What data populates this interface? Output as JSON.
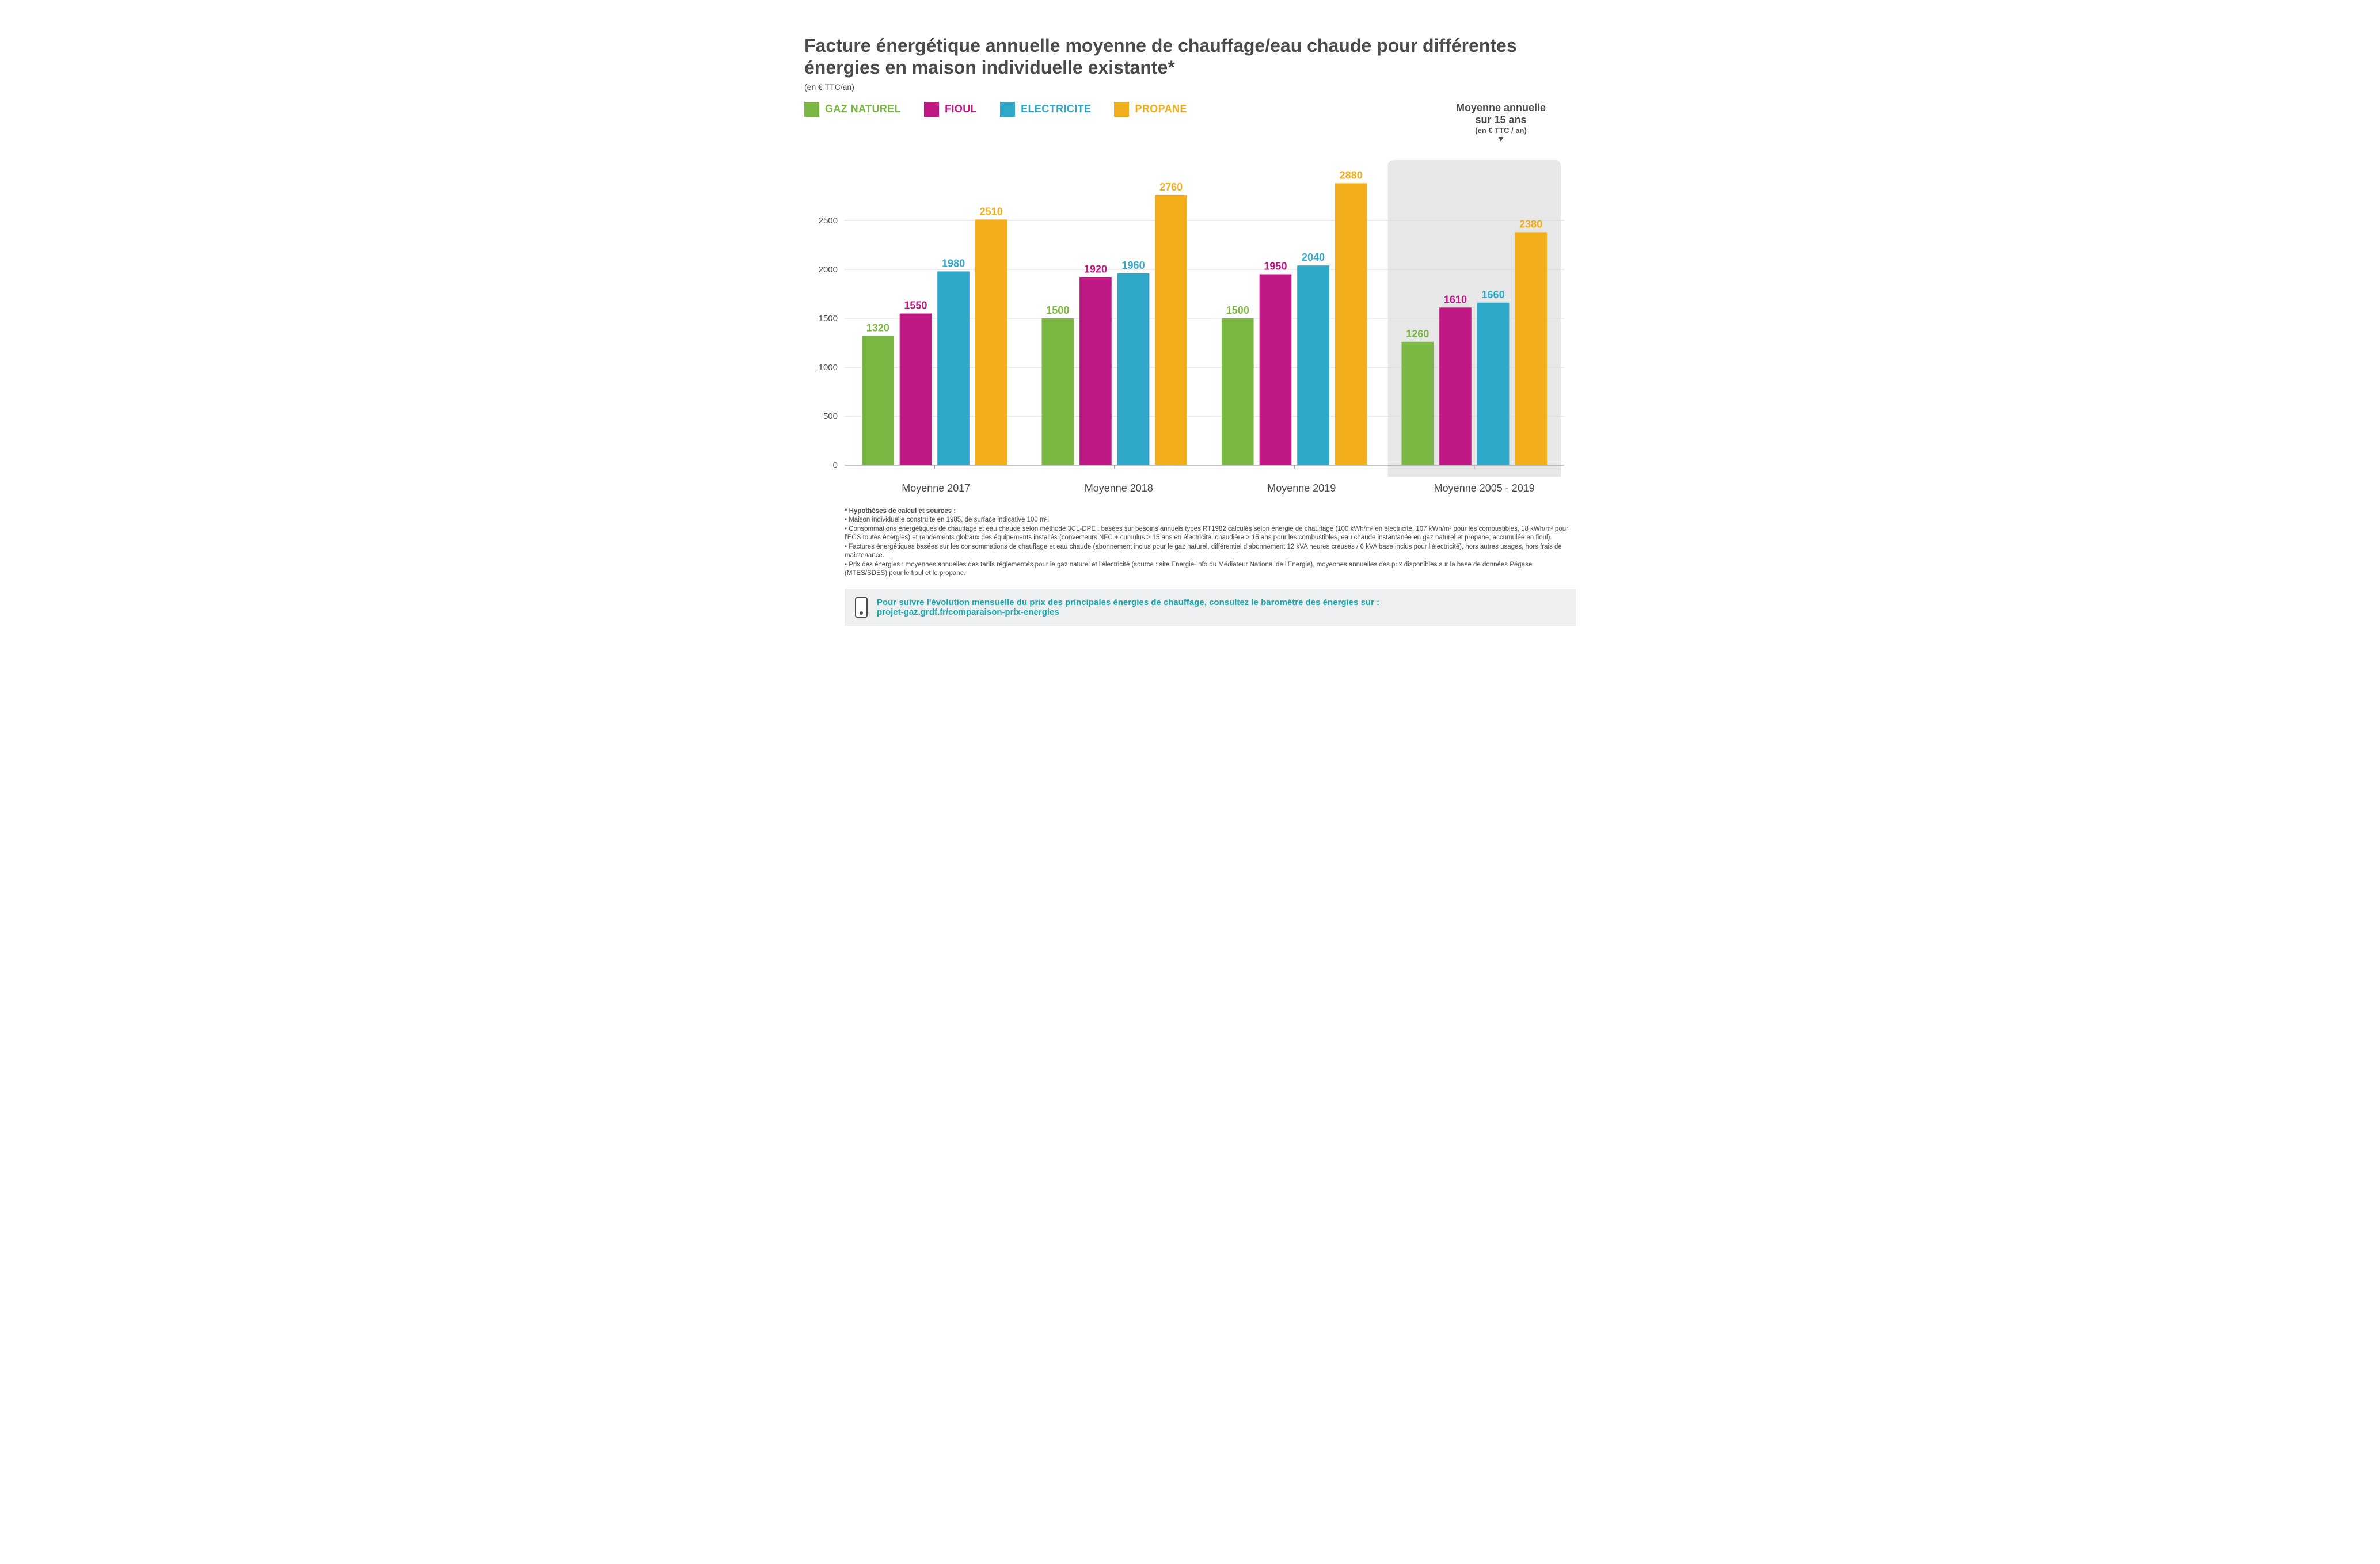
{
  "title": "Facture énergétique annuelle moyenne de chauffage/eau chaude pour différentes énergies en maison individuelle existante*",
  "subtitle": "(en € TTC/an)",
  "colors": {
    "gaz": "#7ab642",
    "fioul": "#c01884",
    "elec": "#2ea7c9",
    "prop": "#f2ad1b",
    "text": "#4a4a4a",
    "grid": "#d9d9d9",
    "axis": "#8a8a8a",
    "avg_bg": "#e7e7e7",
    "callout_bg": "#eeeff0",
    "callout_text": "#18a8ac",
    "background": "#ffffff"
  },
  "legend": [
    {
      "key": "gaz",
      "label": "GAZ NATUREL"
    },
    {
      "key": "fioul",
      "label": "FIOUL"
    },
    {
      "key": "elec",
      "label": "ELECTRICITE"
    },
    {
      "key": "prop",
      "label": "PROPANE"
    }
  ],
  "avg_box": {
    "line1": "Moyenne annuelle",
    "line2": "sur 15 ans",
    "line3": "(en € TTC / an)"
  },
  "chart": {
    "type": "bar",
    "ylim": [
      0,
      3000
    ],
    "ytick_step": 500,
    "yticks": [
      0,
      500,
      1000,
      1500,
      2000,
      2500
    ],
    "bar_width": 0.72,
    "label_fontsize": 18,
    "value_fontsize": 18,
    "axis_fontsize": 15,
    "groups": [
      {
        "label": "Moyenne 2017",
        "highlight": false,
        "values": {
          "gaz": 1320,
          "fioul": 1550,
          "elec": 1980,
          "prop": 2510
        }
      },
      {
        "label": "Moyenne 2018",
        "highlight": false,
        "values": {
          "gaz": 1500,
          "fioul": 1920,
          "elec": 1960,
          "prop": 2760
        }
      },
      {
        "label": "Moyenne 2019",
        "highlight": false,
        "values": {
          "gaz": 1500,
          "fioul": 1950,
          "elec": 2040,
          "prop": 2880
        }
      },
      {
        "label": "Moyenne 2005 - 2019",
        "highlight": true,
        "values": {
          "gaz": 1260,
          "fioul": 1610,
          "elec": 1660,
          "prop": 2380
        }
      }
    ]
  },
  "notes": {
    "title": "* Hypothèses de calcul et sources :",
    "lines": [
      "• Maison individuelle construite en 1985, de surface indicative 100 m².",
      "• Consommations énergétiques de chauffage et eau chaude selon méthode 3CL-DPE : basées sur besoins annuels types RT1982 calculés selon énergie de chauffage (100 kWh/m² en électricité, 107 kWh/m² pour les combustibles, 18 kWh/m² pour l'ECS toutes énergies) et rendements globaux des équipements installés (convecteurs NFC + cumulus > 15 ans en électricité, chaudière > 15 ans pour les combustibles, eau chaude instantanée en gaz naturel et propane, accumulée en fioul).",
      "• Factures énergétiques basées sur les consommations de chauffage et eau chaude (abonnement inclus pour le gaz naturel, différentiel d'abonnement 12 kVA heures creuses / 6 kVA base inclus pour l'électricité), hors autres usages, hors frais de maintenance.",
      "• Prix des énergies : moyennes annuelles des tarifs réglementés pour le gaz naturel et l'électricité (source : site Energie-Info du Médiateur National de l'Energie), moyennes annuelles des prix disponibles sur la base de données Pégase (MTES/SDES) pour le fioul et le propane."
    ]
  },
  "callout": {
    "text": "Pour suivre l'évolution mensuelle du prix des principales énergies de chauffage, consultez le baromètre des énergies sur :",
    "link": "projet-gaz.grdf.fr/comparaison-prix-energies"
  }
}
